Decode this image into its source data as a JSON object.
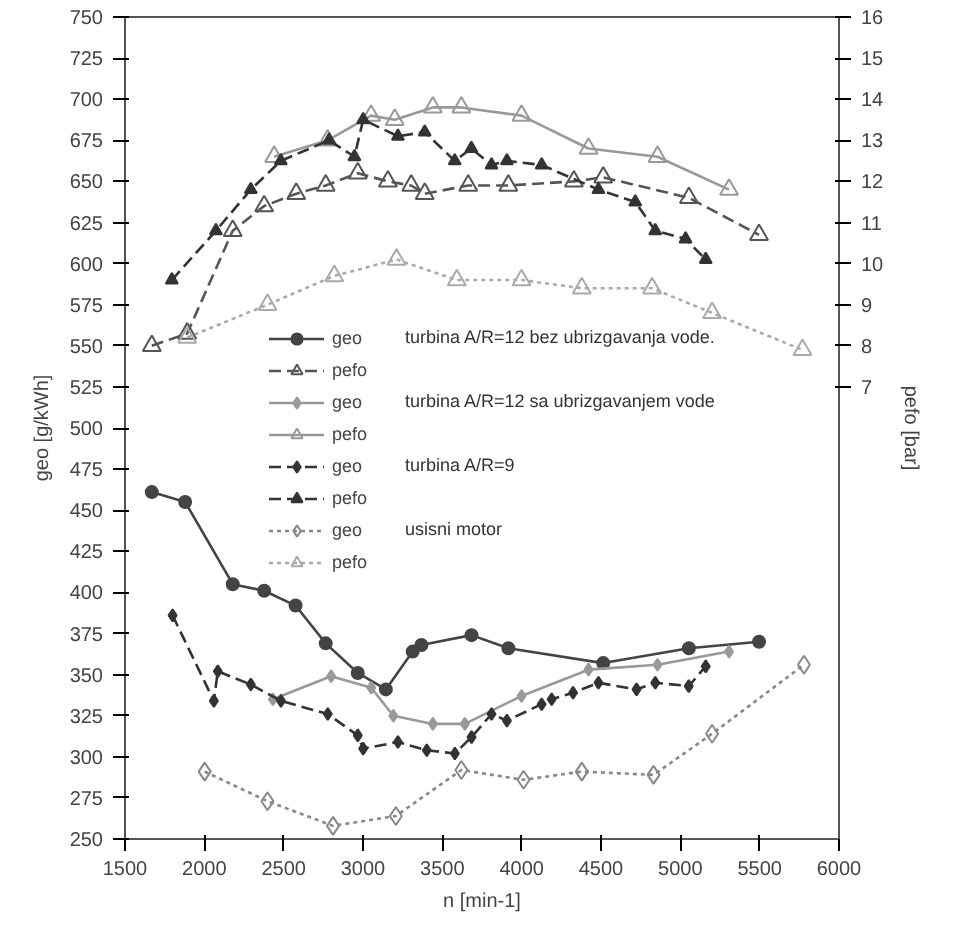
{
  "chart_data": {
    "type": "line",
    "xlabel": "n [min-1]",
    "ylabel": "geo [g/kWh]",
    "y2label": "pefo [bar]",
    "xlim": [
      1500,
      6000
    ],
    "xticks": [
      1500,
      2000,
      2500,
      3000,
      3500,
      4000,
      4500,
      5000,
      5500,
      6000
    ],
    "ylim": [
      250,
      750
    ],
    "yticks": [
      250,
      275,
      300,
      325,
      350,
      375,
      400,
      425,
      450,
      475,
      500,
      525,
      550,
      575,
      600,
      625,
      650,
      675,
      700,
      725,
      750
    ],
    "y2lim": [
      -4,
      16
    ],
    "y2ticks": [
      7,
      8,
      9,
      10,
      11,
      12,
      13,
      14,
      15,
      16
    ],
    "grid": false,
    "legend": "center",
    "annotations": [
      "turbina A/R=12 bez ubrizgavanja vode.",
      "turbina A/R=12 sa ubrizgavanjem vode",
      "turbina A/R=9",
      "usisni motor"
    ],
    "series": [
      {
        "name": "geo",
        "color": "#444444",
        "marker": "circle",
        "line_style": "solid",
        "x": [
          1669,
          1879,
          2179,
          2377,
          2575,
          2765,
          2967,
          3144,
          3313,
          3368,
          3684,
          3916,
          4514,
          5054,
          5496
        ],
        "values": [
          461,
          455,
          405,
          401,
          392,
          369,
          351,
          341,
          364,
          368,
          374,
          366,
          357,
          366,
          370
        ]
      },
      {
        "name": "pefo",
        "color": "#555555",
        "marker": "triangle",
        "line_style": "dashed",
        "axis": "y2",
        "x": [
          1669,
          1892,
          2179,
          2377,
          2579,
          2765,
          2967,
          3157,
          3304,
          3389,
          3663,
          3916,
          4329,
          4514,
          5054,
          5496
        ],
        "values": [
          8.0,
          8.3,
          10.8,
          11.4,
          11.7,
          11.9,
          12.2,
          12.0,
          11.9,
          11.7,
          11.9,
          11.9,
          12.0,
          12.1,
          11.6,
          10.7
        ]
      },
      {
        "name": "geo",
        "color": "#999999",
        "marker": "diamond",
        "line_style": "solid",
        "x": [
          2432,
          2799,
          3052,
          3191,
          3440,
          3642,
          3999,
          4421,
          4856,
          5307
        ],
        "values": [
          335,
          349,
          342,
          325,
          320,
          320,
          337,
          353,
          356,
          364
        ]
      },
      {
        "name": "pefo",
        "color": "#999999",
        "marker": "triangle",
        "line_style": "solid",
        "axis": "y2",
        "x": [
          2440,
          2777,
          3051,
          3200,
          3440,
          3620,
          3999,
          4421,
          4856,
          5307
        ],
        "values": [
          12.6,
          13.0,
          13.6,
          13.5,
          13.8,
          13.8,
          13.6,
          12.8,
          12.6,
          11.8
        ]
      },
      {
        "name": "geo",
        "color": "#333333",
        "marker": "diamond",
        "line_style": "dashed",
        "x": [
          1800,
          2060,
          2085,
          2293,
          2483,
          2778,
          2967,
          3001,
          3220,
          3402,
          3579,
          3684,
          3810,
          3907,
          4126,
          4189,
          4324,
          4484,
          4724,
          4842,
          5053,
          5160
        ],
        "values": [
          386,
          334,
          352,
          344,
          334,
          326,
          313,
          305,
          309,
          304,
          302,
          312,
          326,
          322,
          332,
          335,
          339,
          345,
          341,
          345,
          343,
          355
        ]
      },
      {
        "name": "pefo",
        "color": "#333333",
        "marker": "triangle",
        "line_style": "dashed",
        "axis": "y2",
        "x": [
          1795,
          2073,
          2293,
          2482,
          2786,
          2946,
          3001,
          3220,
          3389,
          3578,
          3683,
          3810,
          3907,
          4126,
          4484,
          4716,
          4842,
          5033,
          5160
        ],
        "values": [
          9.6,
          10.8,
          11.8,
          12.5,
          13.0,
          12.6,
          13.5,
          13.1,
          13.2,
          12.5,
          12.8,
          12.4,
          12.5,
          12.4,
          11.8,
          11.5,
          10.8,
          10.6,
          10.1
        ]
      },
      {
        "name": "geo",
        "color": "#888888",
        "marker": "diamond",
        "line_style": "dotted",
        "x": [
          2002,
          2398,
          2811,
          3207,
          3620,
          4012,
          4379,
          4831,
          5200,
          5779
        ],
        "values": [
          291,
          273,
          258,
          264,
          292,
          286,
          291,
          289,
          314,
          356
        ]
      },
      {
        "name": "pefo",
        "color": "#aaaaaa",
        "marker": "triangle",
        "line_style": "dotted",
        "axis": "y2",
        "x": [
          1892,
          2398,
          2819,
          3211,
          3591,
          3999,
          4379,
          4822,
          5200,
          5770
        ],
        "values": [
          8.2,
          9.0,
          9.7,
          10.1,
          9.6,
          9.6,
          9.4,
          9.4,
          8.8,
          7.9
        ]
      }
    ]
  }
}
